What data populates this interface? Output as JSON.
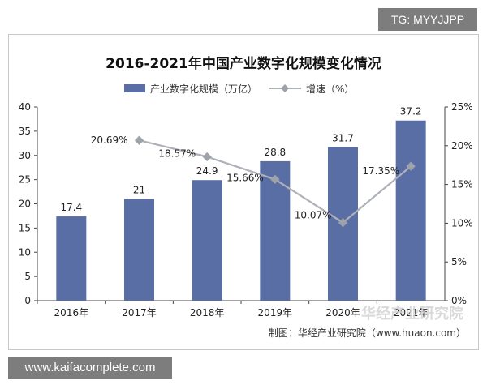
{
  "top_tag": "TG: MYYJJPP",
  "bottom_tag": "www.kaifacomplete.com",
  "watermark": "华经产业研究院",
  "source_note": "制图：华经产业研究院（www.huaon.com）",
  "colors": {
    "bar": "#5a6ea6",
    "line": "#aeb1b8",
    "marker": "#9ea2aa"
  },
  "chart_data": {
    "type": "bar",
    "title": "2016-2021年中国产业数字化规模变化情况",
    "categories": [
      "2016年",
      "2017年",
      "2018年",
      "2019年",
      "2020年",
      "2021年"
    ],
    "series": [
      {
        "name": "产业数字化规模（万亿）",
        "type": "bar",
        "axis": "left",
        "values": [
          17.4,
          21,
          24.9,
          28.8,
          31.7,
          37.2
        ],
        "labels": [
          "17.4",
          "21",
          "24.9",
          "28.8",
          "31.7",
          "37.2"
        ]
      },
      {
        "name": "增速（%）",
        "type": "line",
        "axis": "right",
        "values": [
          null,
          20.69,
          18.57,
          15.66,
          10.07,
          17.35
        ],
        "labels": [
          "",
          "20.69%",
          "18.57%",
          "15.66%",
          "10.07%",
          "17.35%"
        ]
      }
    ],
    "ylim_left": [
      0,
      40
    ],
    "yticks_left": [
      "0",
      "5",
      "10",
      "15",
      "20",
      "25",
      "30",
      "35",
      "40"
    ],
    "ylim_right": [
      0,
      25
    ],
    "yticks_right": [
      "0%",
      "5%",
      "10%",
      "15%",
      "20%",
      "25%"
    ],
    "grid": false,
    "legend_position": "top-center"
  }
}
